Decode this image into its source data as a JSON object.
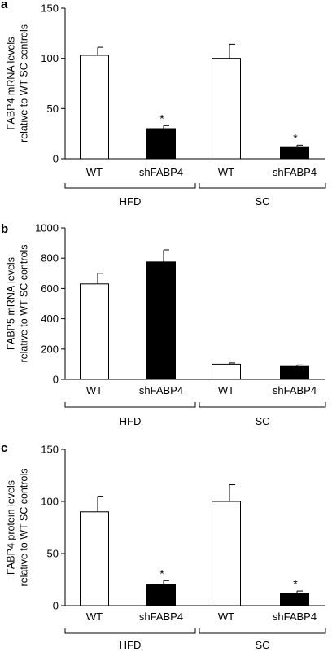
{
  "chart_data": [
    {
      "panel": "a",
      "type": "bar",
      "ylabel_lines": [
        "FABP4 mRNA levels",
        "relative to WT SC controls"
      ],
      "ylim": [
        0,
        150
      ],
      "yticks": [
        0,
        50,
        100,
        150
      ],
      "categories": [
        "WT",
        "shFABP4",
        "WT",
        "shFABP4"
      ],
      "groups": [
        {
          "label": "HFD",
          "from": 0,
          "to": 1
        },
        {
          "label": "SC",
          "from": 2,
          "to": 3
        }
      ],
      "values": [
        103,
        30,
        100,
        12
      ],
      "errors": [
        8,
        3,
        14,
        1.5
      ],
      "fills": [
        "#ffffff",
        "#000000",
        "#ffffff",
        "#000000"
      ],
      "annotations": [
        "",
        "*",
        "",
        "*"
      ]
    },
    {
      "panel": "b",
      "type": "bar",
      "ylabel_lines": [
        "FABP5 mRNA levels",
        "relative to WT SC controls"
      ],
      "ylim": [
        0,
        1000
      ],
      "yticks": [
        0,
        200,
        400,
        600,
        800,
        1000
      ],
      "categories": [
        "WT",
        "shFABP4",
        "WT",
        "shFABP4"
      ],
      "groups": [
        {
          "label": "HFD",
          "from": 0,
          "to": 1
        },
        {
          "label": "SC",
          "from": 2,
          "to": 3
        }
      ],
      "values": [
        630,
        775,
        100,
        85
      ],
      "errors": [
        70,
        80,
        8,
        10
      ],
      "fills": [
        "#ffffff",
        "#000000",
        "#ffffff",
        "#000000"
      ],
      "annotations": [
        "",
        "",
        "",
        ""
      ]
    },
    {
      "panel": "c",
      "type": "bar",
      "ylabel_lines": [
        "FABP4 protein levels",
        "relative to WT SC controls"
      ],
      "ylim": [
        0,
        150
      ],
      "yticks": [
        0,
        50,
        100,
        150
      ],
      "categories": [
        "WT",
        "shFABP4",
        "WT",
        "shFABP4"
      ],
      "groups": [
        {
          "label": "HFD",
          "from": 0,
          "to": 1
        },
        {
          "label": "SC",
          "from": 2,
          "to": 3
        }
      ],
      "values": [
        90,
        20,
        100,
        12
      ],
      "errors": [
        15,
        4,
        16,
        2
      ],
      "fills": [
        "#ffffff",
        "#000000",
        "#ffffff",
        "#000000"
      ],
      "annotations": [
        "",
        "*",
        "",
        "*"
      ]
    }
  ]
}
